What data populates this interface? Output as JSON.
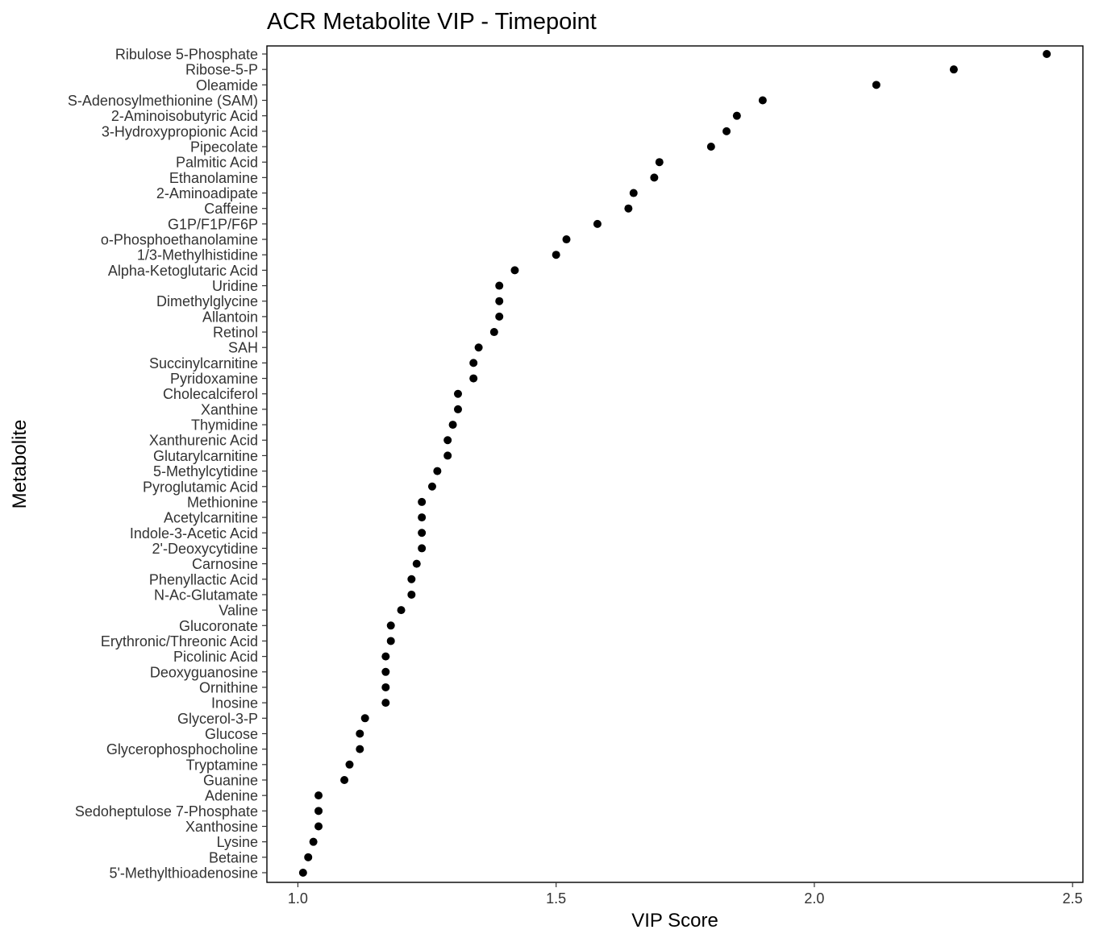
{
  "chart_data": {
    "type": "scatter",
    "title": "ACR Metabolite VIP - Timepoint",
    "xlabel": "VIP Score",
    "ylabel": "Metabolite",
    "xlim": [
      0.94,
      2.52
    ],
    "xticks": [
      "1.0",
      "1.5",
      "2.0",
      "2.5"
    ],
    "grid": false,
    "legend": "none",
    "point_color": "#000000",
    "points": [
      {
        "metabolite": "Ribulose 5-Phosphate",
        "vip": 2.45
      },
      {
        "metabolite": "Ribose-5-P",
        "vip": 2.27
      },
      {
        "metabolite": "Oleamide",
        "vip": 2.12
      },
      {
        "metabolite": "S-Adenosylmethionine (SAM)",
        "vip": 1.9
      },
      {
        "metabolite": "2-Aminoisobutyric Acid",
        "vip": 1.85
      },
      {
        "metabolite": "3-Hydroxypropionic Acid",
        "vip": 1.83
      },
      {
        "metabolite": "Pipecolate",
        "vip": 1.8
      },
      {
        "metabolite": "Palmitic Acid",
        "vip": 1.7
      },
      {
        "metabolite": "Ethanolamine",
        "vip": 1.69
      },
      {
        "metabolite": "2-Aminoadipate",
        "vip": 1.65
      },
      {
        "metabolite": "Caffeine",
        "vip": 1.64
      },
      {
        "metabolite": "G1P/F1P/F6P",
        "vip": 1.58
      },
      {
        "metabolite": "o-Phosphoethanolamine",
        "vip": 1.52
      },
      {
        "metabolite": "1/3-Methylhistidine",
        "vip": 1.5
      },
      {
        "metabolite": "Alpha-Ketoglutaric Acid",
        "vip": 1.42
      },
      {
        "metabolite": "Uridine",
        "vip": 1.39
      },
      {
        "metabolite": "Dimethylglycine",
        "vip": 1.39
      },
      {
        "metabolite": "Allantoin",
        "vip": 1.39
      },
      {
        "metabolite": "Retinol",
        "vip": 1.38
      },
      {
        "metabolite": "SAH",
        "vip": 1.35
      },
      {
        "metabolite": "Succinylcarnitine",
        "vip": 1.34
      },
      {
        "metabolite": "Pyridoxamine",
        "vip": 1.34
      },
      {
        "metabolite": "Cholecalciferol",
        "vip": 1.31
      },
      {
        "metabolite": "Xanthine",
        "vip": 1.31
      },
      {
        "metabolite": "Thymidine",
        "vip": 1.3
      },
      {
        "metabolite": "Xanthurenic Acid",
        "vip": 1.29
      },
      {
        "metabolite": "Glutarylcarnitine",
        "vip": 1.29
      },
      {
        "metabolite": "5-Methylcytidine",
        "vip": 1.27
      },
      {
        "metabolite": "Pyroglutamic Acid",
        "vip": 1.26
      },
      {
        "metabolite": "Methionine",
        "vip": 1.24
      },
      {
        "metabolite": "Acetylcarnitine",
        "vip": 1.24
      },
      {
        "metabolite": "Indole-3-Acetic Acid",
        "vip": 1.24
      },
      {
        "metabolite": "2'-Deoxycytidine",
        "vip": 1.24
      },
      {
        "metabolite": "Carnosine",
        "vip": 1.23
      },
      {
        "metabolite": "Phenyllactic Acid",
        "vip": 1.22
      },
      {
        "metabolite": "N-Ac-Glutamate",
        "vip": 1.22
      },
      {
        "metabolite": "Valine",
        "vip": 1.2
      },
      {
        "metabolite": "Glucoronate",
        "vip": 1.18
      },
      {
        "metabolite": "Erythronic/Threonic Acid",
        "vip": 1.18
      },
      {
        "metabolite": "Picolinic Acid",
        "vip": 1.17
      },
      {
        "metabolite": "Deoxyguanosine",
        "vip": 1.17
      },
      {
        "metabolite": "Ornithine",
        "vip": 1.17
      },
      {
        "metabolite": "Inosine",
        "vip": 1.17
      },
      {
        "metabolite": "Glycerol-3-P",
        "vip": 1.13
      },
      {
        "metabolite": "Glucose",
        "vip": 1.12
      },
      {
        "metabolite": "Glycerophosphocholine",
        "vip": 1.12
      },
      {
        "metabolite": "Tryptamine",
        "vip": 1.1
      },
      {
        "metabolite": "Guanine",
        "vip": 1.09
      },
      {
        "metabolite": "Adenine",
        "vip": 1.04
      },
      {
        "metabolite": "Sedoheptulose 7-Phosphate",
        "vip": 1.04
      },
      {
        "metabolite": "Xanthosine",
        "vip": 1.04
      },
      {
        "metabolite": "Lysine",
        "vip": 1.03
      },
      {
        "metabolite": "Betaine",
        "vip": 1.02
      },
      {
        "metabolite": "5'-Methylthioadenosine",
        "vip": 1.01
      }
    ]
  }
}
